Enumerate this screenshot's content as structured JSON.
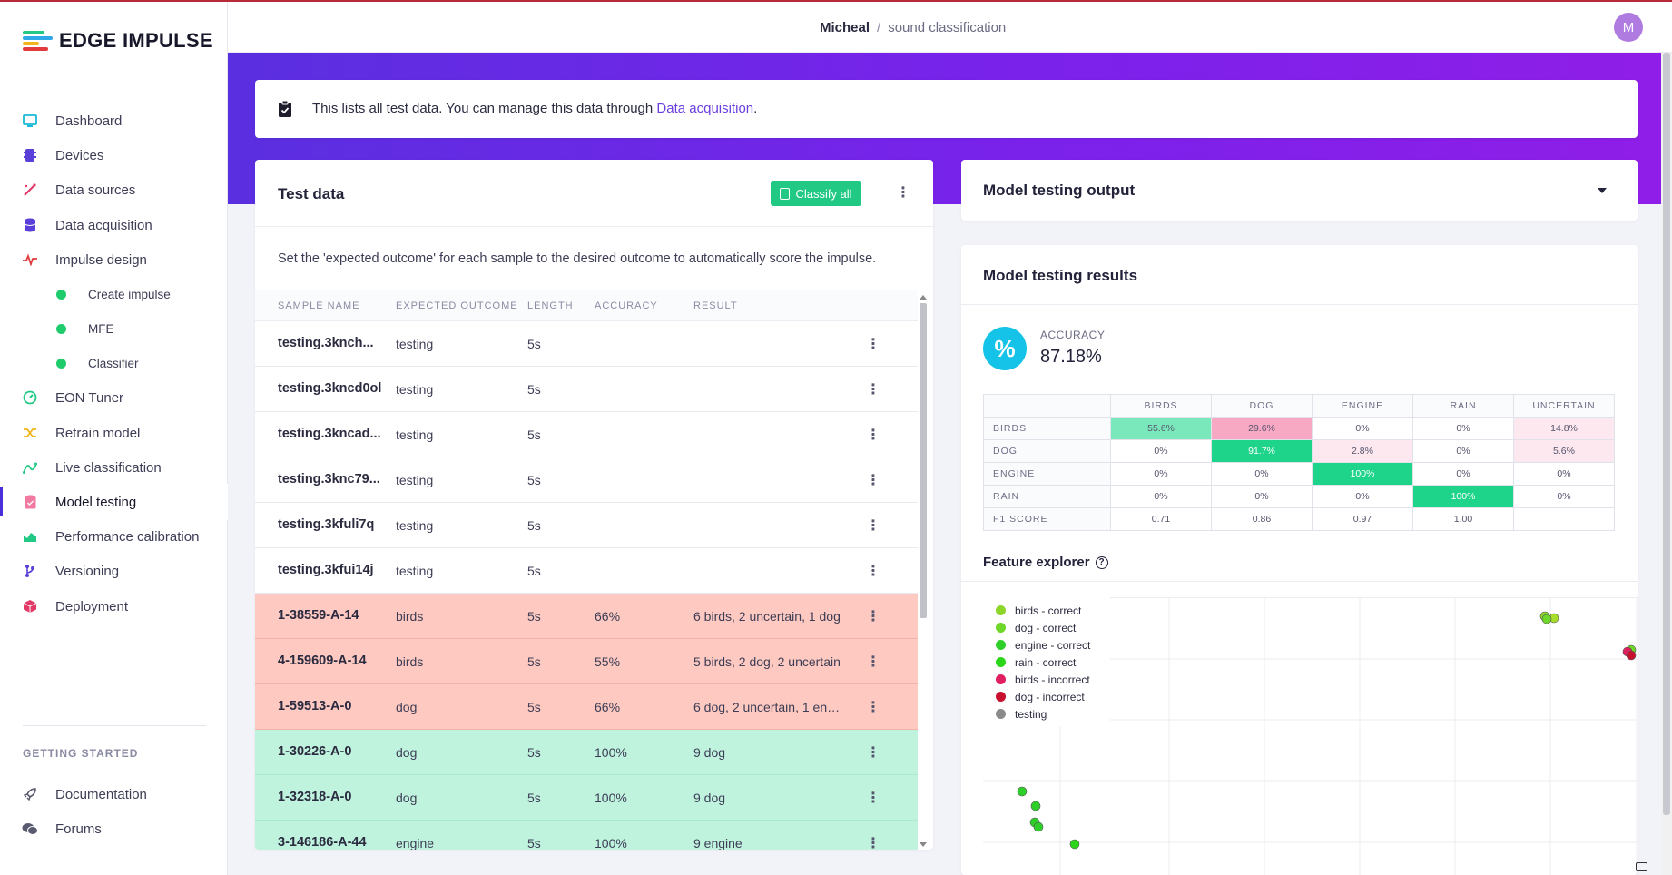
{
  "brand": {
    "name": "EDGE IMPULSE"
  },
  "sidebar": {
    "items": [
      {
        "label": "Dashboard",
        "icon": "monitor-icon",
        "color": "#19b8d6"
      },
      {
        "label": "Devices",
        "icon": "chip-icon",
        "color": "#5a3fd8"
      },
      {
        "label": "Data sources",
        "icon": "wand-icon",
        "color": "#e23b6a"
      },
      {
        "label": "Data acquisition",
        "icon": "database-icon",
        "color": "#5a3fd8"
      },
      {
        "label": "Impulse design",
        "icon": "pulse-icon",
        "color": "#e23b3b"
      },
      {
        "label": "Create impulse",
        "icon": "dot-icon",
        "sub": true
      },
      {
        "label": "MFE",
        "icon": "dot-icon",
        "sub": true
      },
      {
        "label": "Classifier",
        "icon": "dot-icon",
        "sub": true
      },
      {
        "label": "EON Tuner",
        "icon": "gauge-icon",
        "color": "#22c984"
      },
      {
        "label": "Retrain model",
        "icon": "shuffle-icon",
        "color": "#f2b51c"
      },
      {
        "label": "Live classification",
        "icon": "curve-icon",
        "color": "#22c984"
      },
      {
        "label": "Model testing",
        "icon": "clipboard-icon",
        "color": "#f07aa0",
        "active": true
      },
      {
        "label": "Performance calibration",
        "icon": "chart-area-icon",
        "color": "#22c984"
      },
      {
        "label": "Versioning",
        "icon": "branch-icon",
        "color": "#5a3fd8"
      },
      {
        "label": "Deployment",
        "icon": "cube-icon",
        "color": "#e23b6a"
      }
    ],
    "getting_started_heading": "GETTING STARTED",
    "getting_started": [
      {
        "label": "Documentation",
        "icon": "rocket-icon"
      },
      {
        "label": "Forums",
        "icon": "chat-icon"
      }
    ]
  },
  "header": {
    "user": "Micheal",
    "separator": "/",
    "project": "sound classification",
    "avatar_initial": "M"
  },
  "info": {
    "text": "This lists all test data. You can manage this data through ",
    "link": "Data acquisition",
    "suffix": "."
  },
  "test_data": {
    "title": "Test data",
    "classify_all": "Classify all",
    "description": "Set the 'expected outcome' for each sample to the desired outcome to automatically score the impulse.",
    "columns": [
      "SAMPLE NAME",
      "EXPECTED OUTCOME",
      "LENGTH",
      "ACCURACY",
      "RESULT"
    ],
    "rows": [
      {
        "name": "testing.3knch...",
        "expected": "testing",
        "length": "5s",
        "accuracy": "",
        "result": "",
        "status": "none"
      },
      {
        "name": "testing.3kncd0ol",
        "expected": "testing",
        "length": "5s",
        "accuracy": "",
        "result": "",
        "status": "none"
      },
      {
        "name": "testing.3kncad...",
        "expected": "testing",
        "length": "5s",
        "accuracy": "",
        "result": "",
        "status": "none"
      },
      {
        "name": "testing.3knc79...",
        "expected": "testing",
        "length": "5s",
        "accuracy": "",
        "result": "",
        "status": "none"
      },
      {
        "name": "testing.3kfuli7q",
        "expected": "testing",
        "length": "5s",
        "accuracy": "",
        "result": "",
        "status": "none"
      },
      {
        "name": "testing.3kfui14j",
        "expected": "testing",
        "length": "5s",
        "accuracy": "",
        "result": "",
        "status": "none"
      },
      {
        "name": "1-38559-A-14",
        "expected": "birds",
        "length": "5s",
        "accuracy": "66%",
        "result": "6 birds, 2 uncertain, 1 dog",
        "status": "bad"
      },
      {
        "name": "4-159609-A-14",
        "expected": "birds",
        "length": "5s",
        "accuracy": "55%",
        "result": "5 birds, 2 dog, 2 uncertain",
        "status": "bad"
      },
      {
        "name": "1-59513-A-0",
        "expected": "dog",
        "length": "5s",
        "accuracy": "66%",
        "result": "6 dog, 2 uncertain, 1 engi...",
        "status": "bad"
      },
      {
        "name": "1-30226-A-0",
        "expected": "dog",
        "length": "5s",
        "accuracy": "100%",
        "result": "9 dog",
        "status": "good"
      },
      {
        "name": "1-32318-A-0",
        "expected": "dog",
        "length": "5s",
        "accuracy": "100%",
        "result": "9 dog",
        "status": "good"
      },
      {
        "name": "3-146186-A-44",
        "expected": "engine",
        "length": "5s",
        "accuracy": "100%",
        "result": "9 engine",
        "status": "good"
      }
    ]
  },
  "output": {
    "title": "Model testing output"
  },
  "results": {
    "title": "Model testing results",
    "accuracy_label": "ACCURACY",
    "accuracy_value": "87.18%",
    "accuracy_symbol": "%",
    "confusion": {
      "columns": [
        "BIRDS",
        "DOG",
        "ENGINE",
        "RAIN",
        "UNCERTAIN"
      ],
      "rows": [
        {
          "label": "BIRDS",
          "cells": [
            "55.6%",
            "29.6%",
            "0%",
            "0%",
            "14.8%"
          ],
          "styles": [
            "mid-good",
            "bad",
            "",
            "",
            "light-bad"
          ]
        },
        {
          "label": "DOG",
          "cells": [
            "0%",
            "91.7%",
            "2.8%",
            "0%",
            "5.6%"
          ],
          "styles": [
            "",
            "good",
            "light-bad",
            "",
            "light-bad"
          ]
        },
        {
          "label": "ENGINE",
          "cells": [
            "0%",
            "0%",
            "100%",
            "0%",
            "0%"
          ],
          "styles": [
            "",
            "",
            "good",
            "",
            ""
          ]
        },
        {
          "label": "RAIN",
          "cells": [
            "0%",
            "0%",
            "0%",
            "100%",
            "0%"
          ],
          "styles": [
            "",
            "",
            "",
            "good",
            ""
          ]
        },
        {
          "label": "F1 SCORE",
          "cells": [
            "0.71",
            "0.86",
            "0.97",
            "1.00",
            ""
          ],
          "styles": [
            "",
            "",
            "",
            "",
            ""
          ]
        }
      ],
      "style_colors": {
        "good": "#1ed38a",
        "mid-good": "#7ae8bb",
        "bad": "#f7a8c3",
        "light-bad": "#fde8ef"
      }
    },
    "feature_explorer_title": "Feature explorer",
    "legend": [
      {
        "label": "birds - correct",
        "color": "#8cd62a"
      },
      {
        "label": "dog - correct",
        "color": "#6fd62a"
      },
      {
        "label": "engine - correct",
        "color": "#2fcf2a"
      },
      {
        "label": "rain - correct",
        "color": "#2bd618"
      },
      {
        "label": "birds - incorrect",
        "color": "#e0205e"
      },
      {
        "label": "dog - incorrect",
        "color": "#c8102e"
      },
      {
        "label": "testing",
        "color": "#8a8a8a"
      }
    ]
  }
}
